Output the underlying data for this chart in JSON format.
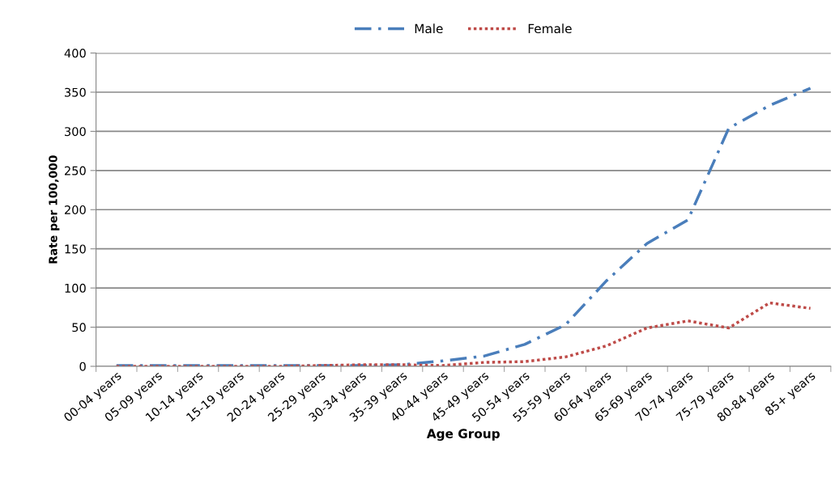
{
  "chart_data": {
    "type": "line",
    "xlabel": "Age Group",
    "ylabel": "Rate per 100,000",
    "categories": [
      "00-04 years",
      "05-09 years",
      "10-14 years",
      "15-19 years",
      "20-24 years",
      "25-29 years",
      "30-34 years",
      "35-39 years",
      "40-44 years",
      "45-49 years",
      "50-54 years",
      "55-59 years",
      "60-64 years",
      "65-69 years",
      "70-74 years",
      "75-79 years",
      "80-84 years",
      "85+ years"
    ],
    "series": [
      {
        "name": "Male",
        "color": "#4a7ebb",
        "line_style": "dashdot",
        "values": [
          1,
          1,
          1,
          1,
          1,
          1,
          1,
          2,
          7,
          13,
          28,
          53,
          109,
          157,
          187,
          304,
          333,
          355
        ]
      },
      {
        "name": "Female",
        "color": "#be4b48",
        "line_style": "dotted",
        "values": [
          0,
          0,
          0,
          0,
          0,
          1,
          2,
          2,
          1,
          5,
          6,
          12,
          26,
          49,
          58,
          49,
          81,
          74
        ]
      }
    ],
    "ylim": [
      0,
      400
    ],
    "yticks": [
      0,
      50,
      100,
      150,
      200,
      250,
      300,
      350,
      400
    ],
    "grid": "y",
    "legend": "top",
    "marker": "none"
  }
}
